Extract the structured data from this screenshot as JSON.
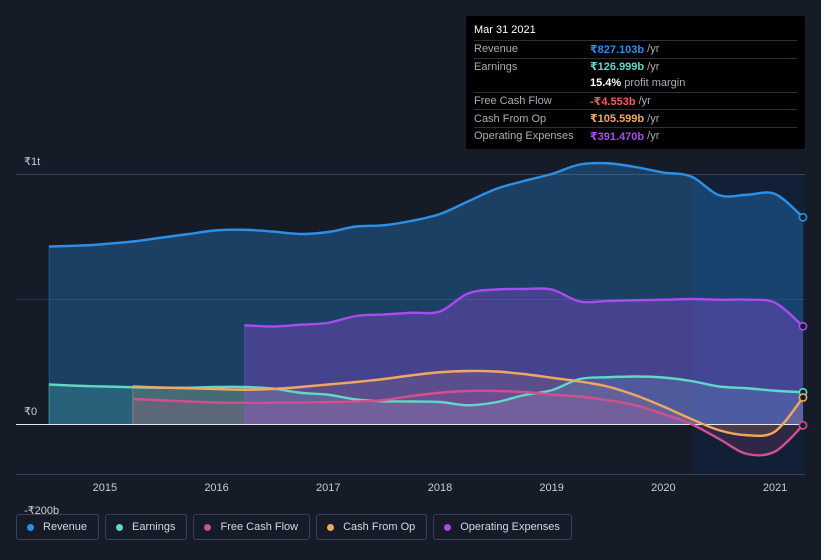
{
  "tooltip": {
    "date": "Mar 31 2021",
    "rows": [
      {
        "label": "Revenue",
        "value": "₹827.103b",
        "suffix": "/yr",
        "color": "#2d8fe6"
      },
      {
        "label": "Earnings",
        "value": "₹126.999b",
        "suffix": "/yr",
        "color": "#5fd8c7"
      },
      {
        "label": "",
        "value": "15.4%",
        "suffix": "profit margin",
        "color": "#ffffff"
      },
      {
        "label": "Free Cash Flow",
        "value": "-₹4.553b",
        "suffix": "/yr",
        "color": "#ff5a5a"
      },
      {
        "label": "Cash From Op",
        "value": "₹105.599b",
        "suffix": "/yr",
        "color": "#f0a860"
      },
      {
        "label": "Operating Expenses",
        "value": "₹391.470b",
        "suffix": "/yr",
        "color": "#a64cf0"
      }
    ]
  },
  "legend": {
    "revenue": "Revenue",
    "earnings": "Earnings",
    "fcf": "Free Cash Flow",
    "cfo": "Cash From Op",
    "opex": "Operating Expenses"
  },
  "chart_data": {
    "type": "area",
    "title": "",
    "xlabel": "",
    "ylabel": "",
    "y_ticks": [
      {
        "value": 1000,
        "label": "₹1t"
      },
      {
        "value": 0,
        "label": "₹0"
      },
      {
        "value": -200,
        "label": "-₹200b"
      }
    ],
    "ylim": [
      -200,
      1000
    ],
    "xlim": [
      2014.5,
      2021.25
    ],
    "x_ticks": [
      2015,
      2016,
      2017,
      2018,
      2019,
      2020,
      2021
    ],
    "forecast_shade_from": 2020.25,
    "series": [
      {
        "name": "Revenue",
        "color": "#2d8fe6",
        "x": [
          2014.5,
          2014.85,
          2015.0,
          2015.25,
          2015.5,
          2015.75,
          2016.0,
          2016.25,
          2016.5,
          2016.75,
          2017.0,
          2017.25,
          2017.5,
          2017.75,
          2018.0,
          2018.25,
          2018.5,
          2018.75,
          2019.0,
          2019.25,
          2019.5,
          2019.75,
          2020.0,
          2020.25,
          2020.5,
          2020.75,
          2021.0,
          2021.25
        ],
        "values": [
          710,
          715,
          720,
          730,
          745,
          760,
          775,
          777,
          770,
          760,
          768,
          790,
          795,
          813,
          840,
          890,
          940,
          972,
          1000,
          1038,
          1043,
          1028,
          1006,
          990,
          915,
          917,
          920,
          827
        ]
      },
      {
        "name": "Earnings",
        "color": "#5fd8c7",
        "x": [
          2014.5,
          2014.75,
          2015.0,
          2015.25,
          2015.5,
          2015.75,
          2016.0,
          2016.25,
          2016.5,
          2016.75,
          2017.0,
          2017.25,
          2017.5,
          2017.75,
          2018.0,
          2018.25,
          2018.5,
          2018.75,
          2019.0,
          2019.25,
          2019.5,
          2019.75,
          2020.0,
          2020.25,
          2020.5,
          2020.75,
          2021.0,
          2021.25
        ],
        "values": [
          158,
          153,
          150,
          147,
          145,
          145,
          148,
          148,
          142,
          125,
          117,
          98,
          91,
          90,
          88,
          75,
          87,
          115,
          135,
          180,
          187,
          190,
          186,
          172,
          150,
          143,
          133,
          127
        ]
      },
      {
        "name": "Free Cash Flow",
        "color": "#d0508e",
        "x": [
          2015.25,
          2015.5,
          2015.75,
          2016.0,
          2016.25,
          2016.5,
          2016.75,
          2017.0,
          2017.25,
          2017.5,
          2017.75,
          2018.0,
          2018.25,
          2018.5,
          2018.75,
          2019.0,
          2019.25,
          2019.5,
          2019.75,
          2020.0,
          2020.25,
          2020.5,
          2020.75,
          2021.0,
          2021.25
        ],
        "values": [
          100,
          95,
          90,
          86,
          85,
          85,
          86,
          88,
          90,
          96,
          112,
          125,
          132,
          132,
          128,
          118,
          110,
          95,
          75,
          40,
          0,
          -60,
          -120,
          -110,
          -5
        ]
      },
      {
        "name": "Cash From Op",
        "color": "#f0a860",
        "x": [
          2015.25,
          2015.5,
          2015.75,
          2016.0,
          2016.25,
          2016.5,
          2016.75,
          2017.0,
          2017.25,
          2017.5,
          2017.75,
          2018.0,
          2018.25,
          2018.5,
          2018.75,
          2019.0,
          2019.25,
          2019.5,
          2019.75,
          2020.0,
          2020.25,
          2020.5,
          2020.75,
          2021.0,
          2021.25
        ],
        "values": [
          150,
          146,
          143,
          140,
          137,
          140,
          148,
          158,
          168,
          180,
          195,
          207,
          212,
          210,
          200,
          185,
          170,
          150,
          115,
          70,
          20,
          -25,
          -45,
          -30,
          106
        ]
      },
      {
        "name": "Operating Expenses",
        "color": "#a64cf0",
        "x": [
          2016.25,
          2016.5,
          2016.75,
          2017.0,
          2017.25,
          2017.5,
          2017.75,
          2018.0,
          2018.25,
          2018.5,
          2018.75,
          2019.0,
          2019.25,
          2019.5,
          2019.75,
          2020.0,
          2020.25,
          2020.5,
          2020.75,
          2021.0,
          2021.25
        ],
        "values": [
          395,
          390,
          397,
          405,
          432,
          438,
          445,
          450,
          522,
          538,
          540,
          538,
          490,
          492,
          495,
          497,
          500,
          497,
          497,
          485,
          391
        ]
      }
    ]
  }
}
